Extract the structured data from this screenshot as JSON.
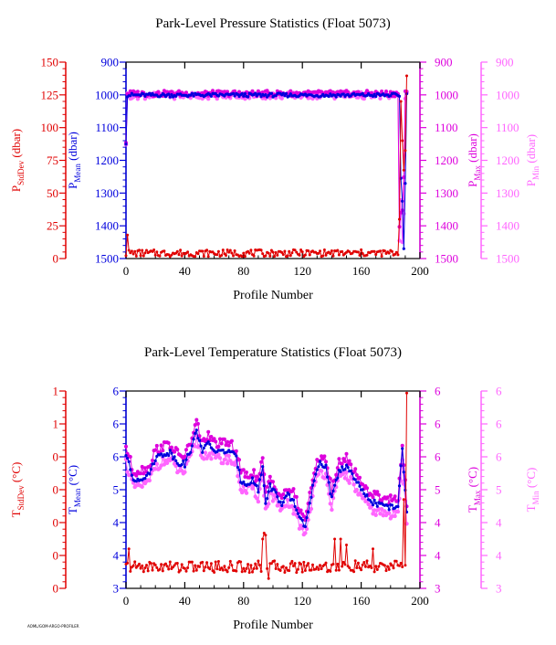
{
  "footer": "AOML/GOM-ARGO-PROFILER",
  "colors": {
    "stddev": "#e00000",
    "mean": "#0000dd",
    "max": "#dd00dd",
    "min": "#ff66ff",
    "axis": "#000000"
  },
  "chart_data": [
    {
      "type": "line",
      "title": "Park-Level Pressure Statistics (Float 5073)",
      "xlabel": "Profile Number",
      "xlim": [
        0,
        200
      ],
      "xticks": [
        "0",
        "40",
        "80",
        "120",
        "160",
        "200"
      ],
      "axes": [
        {
          "side": "left-outer",
          "label": "P",
          "sub": "StdDev",
          "unit": "(dbar)",
          "color": "#e00000",
          "ticks": [
            "150",
            "125",
            "100",
            "75",
            "50",
            "25",
            "0"
          ]
        },
        {
          "side": "left-inner",
          "label": "P",
          "sub": "Mean",
          "unit": "(dbar)",
          "color": "#0000dd",
          "ticks": [
            "900",
            "1000",
            "1100",
            "1200",
            "1300",
            "1400",
            "1500"
          ]
        },
        {
          "side": "right-inner",
          "label": "P",
          "sub": "Max",
          "unit": "(dbar)",
          "color": "#dd00dd",
          "ticks": [
            "900",
            "1000",
            "1100",
            "1200",
            "1300",
            "1400",
            "1500"
          ]
        },
        {
          "side": "right-outer",
          "label": "P",
          "sub": "Min",
          "unit": "(dbar)",
          "color": "#ff66ff",
          "ticks": [
            "900",
            "1000",
            "1100",
            "1200",
            "1300",
            "1400",
            "1500"
          ]
        }
      ],
      "series_names": [
        "StdDev",
        "Mean",
        "Max",
        "Min"
      ]
    },
    {
      "type": "line",
      "title": "Park-Level Temperature Statistics (Float 5073)",
      "xlabel": "Profile Number",
      "xlim": [
        0,
        200
      ],
      "xticks": [
        "0",
        "40",
        "80",
        "120",
        "160",
        "200"
      ],
      "axes": [
        {
          "side": "left-outer",
          "label": "T",
          "sub": "StdDev",
          "unit": "(°C)",
          "color": "#e00000",
          "ticks": [
            "1",
            "1",
            "0",
            "0",
            "0",
            "0",
            "0"
          ]
        },
        {
          "side": "left-inner",
          "label": "T",
          "sub": "Mean",
          "unit": "(°C)",
          "color": "#0000dd",
          "ticks": [
            "6",
            "6",
            "6",
            "5",
            "4",
            "4",
            "3"
          ]
        },
        {
          "side": "right-inner",
          "label": "T",
          "sub": "Max",
          "unit": "(°C)",
          "color": "#dd00dd",
          "ticks": [
            "6",
            "6",
            "6",
            "5",
            "4",
            "4",
            "3"
          ]
        },
        {
          "side": "right-outer",
          "label": "T",
          "sub": "Min",
          "unit": "(°C)",
          "color": "#ff66ff",
          "ticks": [
            "6",
            "6",
            "6",
            "5",
            "4",
            "4",
            "3"
          ]
        }
      ],
      "series_names": [
        "StdDev",
        "Mean",
        "Max",
        "Min"
      ]
    }
  ]
}
